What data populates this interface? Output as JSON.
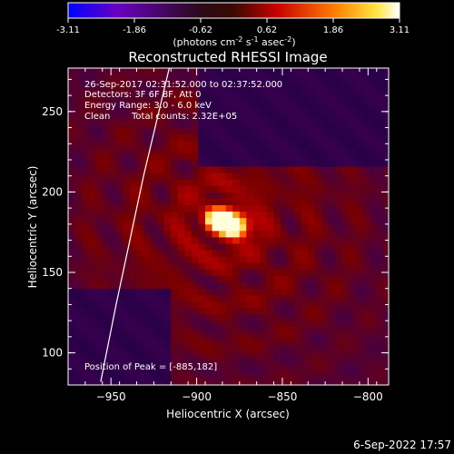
{
  "chart_data": {
    "type": "heatmap",
    "title": "Reconstructed RHESSI Image",
    "xlabel": "Heliocentric X (arcsec)",
    "ylabel": "Heliocentric Y (arcsec)",
    "xlim": [
      -975,
      -788
    ],
    "ylim": [
      80,
      277
    ],
    "xticks": [
      -950,
      -900,
      -850,
      -800
    ],
    "yticks": [
      100,
      150,
      200,
      250
    ],
    "colorbar": {
      "min": -3.11,
      "max": 3.11,
      "ticks": [
        "-3.11",
        "-1.86",
        "-0.62",
        "0.62",
        "1.86",
        "3.11"
      ],
      "unit_prefix": "(photons cm",
      "unit_sup1": "-2",
      "unit_mid1": " s",
      "unit_sup2": "-1",
      "unit_mid2": " asec",
      "unit_sup3": "-2",
      "unit_suffix": ")",
      "colors": [
        "#0000ff",
        "#6a00c0",
        "#2b0a18",
        "#3a0a00",
        "#c80000",
        "#ff7a00",
        "#ffe640",
        "#ffffff"
      ]
    },
    "annotations": {
      "line1": "26-Sep-2017 02:31:52.000 to 02:37:52.000",
      "line2": "Detectors: 3F 6F 8F, Att 0",
      "line3": "Energy Range: 3.0 - 6.0 keV",
      "line4_left": "Clean",
      "line4_right": "Total counts: 2.32E+05",
      "peak_label": "Position of Peak = [-885,182]"
    },
    "peak": {
      "x": -885,
      "y": 182
    },
    "sources": [
      {
        "x": -887,
        "y": 183,
        "value": 3.11
      },
      {
        "x": -877,
        "y": 179,
        "value": 2.8
      }
    ],
    "limb_curve": [
      {
        "x": -956,
        "y": 82
      },
      {
        "x": -947,
        "y": 130
      },
      {
        "x": -939,
        "y": 170
      },
      {
        "x": -931,
        "y": 210
      },
      {
        "x": -922,
        "y": 250
      },
      {
        "x": -916,
        "y": 277
      }
    ]
  },
  "footer": {
    "date": "6-Sep-2022 17:57"
  }
}
